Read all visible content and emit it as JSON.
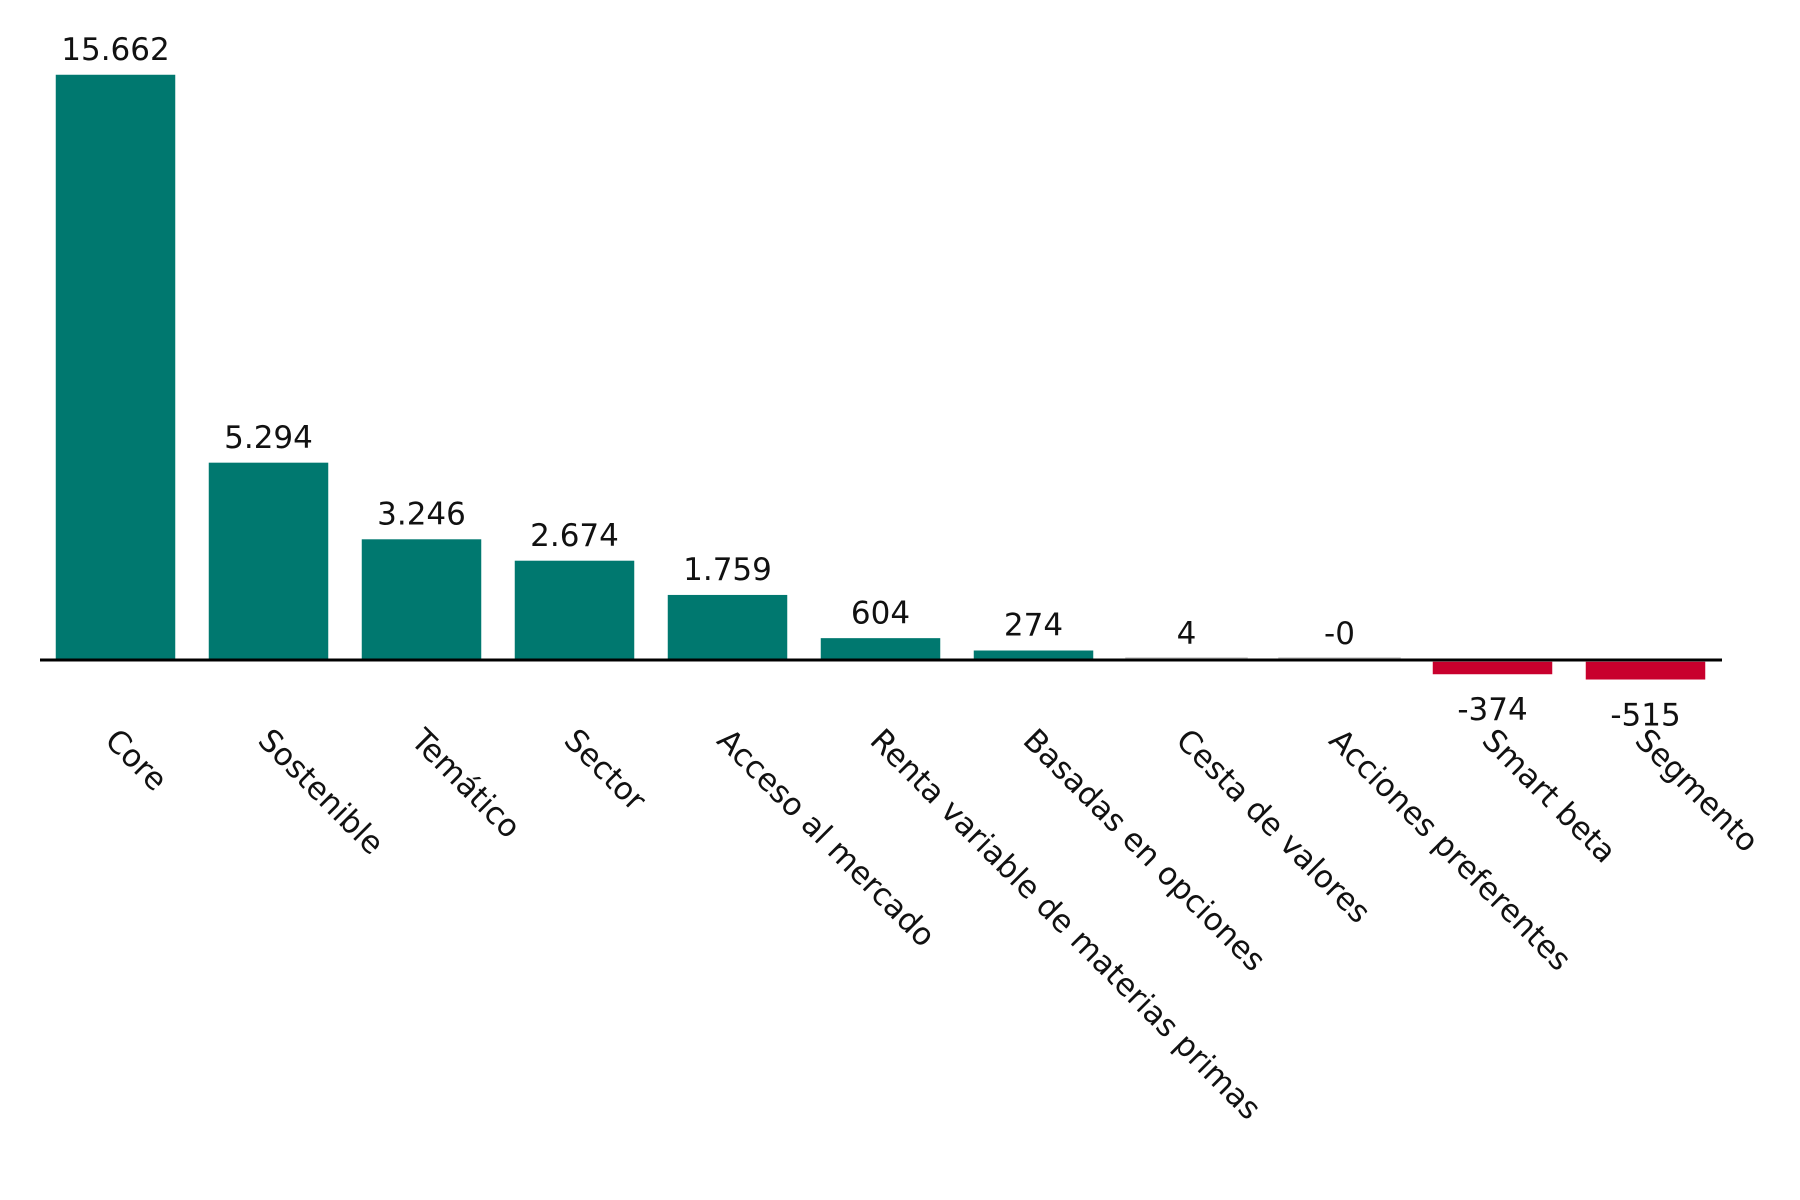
{
  "chart_data": {
    "type": "bar",
    "title": "",
    "xlabel": "",
    "ylabel": "",
    "categories": [
      "Core",
      "Sostenible",
      "Temático",
      "Sector",
      "Acceso al mercado",
      "Renta variable de materias primas",
      "Basadas en opciones",
      "Cesta de valores",
      "Acciones preferentes",
      "Smart beta",
      "Segmento"
    ],
    "values": [
      15662,
      5294,
      3246,
      2674,
      1759,
      604,
      274,
      4,
      0,
      -374,
      -515
    ],
    "data_labels": [
      "15.662",
      "5.294",
      "3.246",
      "2.674",
      "1.759",
      "604",
      "274",
      "4",
      "-0",
      "-374",
      "-515"
    ],
    "positive_color": "#00786F",
    "negative_color": "#C8002D",
    "grid": false,
    "legend": "none",
    "ylim": [
      -515,
      15662
    ]
  }
}
